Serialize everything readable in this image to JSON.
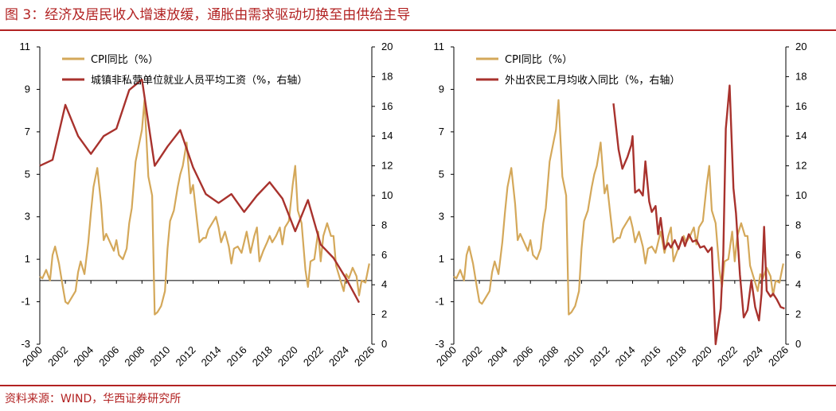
{
  "page": {
    "title": "图 3：经济及居民收入增速放缓，通胀由需求驱动切换至由供给主导",
    "source": "资料来源：WIND，华西证券研究所"
  },
  "colors": {
    "cpi": "#d4a85a",
    "wage": "#a8322d",
    "accent": "#b22222"
  },
  "chart_data": [
    {
      "type": "line",
      "title": "",
      "x_ticks": [
        "2000",
        "2002",
        "2004",
        "2006",
        "2008",
        "2010",
        "2012",
        "2014",
        "2016",
        "2018",
        "2020",
        "2022",
        "2024",
        "2026"
      ],
      "xlim": [
        2000,
        2026
      ],
      "left_axis": {
        "ylim": [
          -3,
          11
        ],
        "ticks": [
          "11",
          "9",
          "7",
          "5",
          "3",
          "1",
          "-1",
          "-3"
        ]
      },
      "right_axis": {
        "ylim": [
          0,
          20
        ],
        "ticks": [
          "20",
          "18",
          "16",
          "14",
          "12",
          "10",
          "8",
          "6",
          "4",
          "2",
          "0"
        ]
      },
      "legend_position": "top-left",
      "series": [
        {
          "name": "CPI同比（%）",
          "axis": "left",
          "x": [
            2000,
            2000.2,
            2000.5,
            2000.8,
            2001,
            2001.2,
            2001.5,
            2001.8,
            2002,
            2002.2,
            2002.5,
            2002.8,
            2003,
            2003.2,
            2003.5,
            2003.8,
            2004,
            2004.2,
            2004.5,
            2004.8,
            2005,
            2005.2,
            2005.5,
            2005.8,
            2006,
            2006.2,
            2006.5,
            2006.8,
            2007,
            2007.2,
            2007.5,
            2007.8,
            2008,
            2008.2,
            2008.5,
            2008.8,
            2009,
            2009.2,
            2009.5,
            2009.8,
            2010,
            2010.2,
            2010.5,
            2010.8,
            2011,
            2011.2,
            2011.5,
            2011.8,
            2012,
            2012.2,
            2012.5,
            2012.8,
            2013,
            2013.2,
            2013.5,
            2013.8,
            2014,
            2014.2,
            2014.5,
            2014.8,
            2015,
            2015.2,
            2015.5,
            2015.8,
            2016,
            2016.2,
            2016.5,
            2016.8,
            2017,
            2017.2,
            2017.5,
            2017.8,
            2018,
            2018.2,
            2018.5,
            2018.8,
            2019,
            2019.2,
            2019.5,
            2019.8,
            2020,
            2020.2,
            2020.5,
            2020.8,
            2021,
            2021.2,
            2021.5,
            2021.8,
            2022,
            2022.2,
            2022.5,
            2022.8,
            2023,
            2023.2,
            2023.5,
            2023.8,
            2024,
            2024.2,
            2024.5,
            2024.8,
            2025,
            2025.2,
            2025.5,
            2025.8
          ],
          "values": [
            0.2,
            0.1,
            0.5,
            0.0,
            1.2,
            1.6,
            0.8,
            -0.3,
            -1.0,
            -1.1,
            -0.8,
            -0.5,
            0.4,
            0.9,
            0.3,
            1.8,
            3.2,
            4.4,
            5.3,
            3.6,
            1.9,
            2.2,
            1.8,
            1.4,
            1.9,
            1.2,
            1.0,
            1.5,
            2.7,
            3.4,
            5.6,
            6.5,
            7.1,
            8.5,
            4.9,
            4.0,
            -1.6,
            -1.5,
            -1.2,
            -0.5,
            1.5,
            2.8,
            3.3,
            4.4,
            5.0,
            5.4,
            6.5,
            4.1,
            4.5,
            3.4,
            1.8,
            2.0,
            2.0,
            2.4,
            2.7,
            3.0,
            2.5,
            1.8,
            2.3,
            1.6,
            0.8,
            1.5,
            1.6,
            1.3,
            1.8,
            2.3,
            1.3,
            2.1,
            2.5,
            0.9,
            1.4,
            1.8,
            2.1,
            1.8,
            2.1,
            2.5,
            1.7,
            2.5,
            2.8,
            4.5,
            5.4,
            3.3,
            2.7,
            0.5,
            -0.3,
            0.9,
            1.0,
            2.3,
            0.9,
            2.1,
            2.7,
            2.1,
            2.1,
            0.7,
            0.1,
            -0.5,
            0.3,
            0.1,
            0.6,
            0.2,
            -0.7,
            0.0,
            -0.1,
            0.8
          ]
        },
        {
          "name": "城镇非私营单位就业人员平均工资（%，右轴）",
          "axis": "right",
          "x": [
            2000,
            2001,
            2002,
            2003,
            2004,
            2005,
            2006,
            2007,
            2008,
            2009,
            2010,
            2011,
            2012,
            2013,
            2014,
            2015,
            2016,
            2017,
            2018,
            2019,
            2020,
            2021,
            2022,
            2023,
            2024,
            2025
          ],
          "values": [
            12.0,
            12.4,
            16.1,
            14.0,
            12.8,
            14.0,
            14.5,
            17.1,
            17.8,
            12.0,
            13.3,
            14.4,
            11.9,
            10.1,
            9.5,
            10.1,
            8.9,
            10.0,
            10.9,
            9.8,
            7.6,
            9.7,
            6.7,
            5.8,
            4.4,
            2.8
          ]
        }
      ]
    },
    {
      "type": "line",
      "title": "",
      "x_ticks": [
        "2000",
        "2002",
        "2004",
        "2006",
        "2008",
        "2010",
        "2012",
        "2014",
        "2016",
        "2018",
        "2020",
        "2022",
        "2024",
        "2026"
      ],
      "xlim": [
        2000,
        2026
      ],
      "left_axis": {
        "ylim": [
          -3,
          11
        ],
        "ticks": [
          "11",
          "9",
          "7",
          "5",
          "3",
          "1",
          "-1",
          "-3"
        ]
      },
      "right_axis": {
        "ylim": [
          0,
          20
        ],
        "ticks": [
          "20",
          "18",
          "16",
          "14",
          "12",
          "10",
          "8",
          "6",
          "4",
          "2",
          "0"
        ]
      },
      "legend_position": "top-left",
      "series": [
        {
          "name": "CPI同比（%）",
          "axis": "left",
          "x": [
            2000,
            2000.2,
            2000.5,
            2000.8,
            2001,
            2001.2,
            2001.5,
            2001.8,
            2002,
            2002.2,
            2002.5,
            2002.8,
            2003,
            2003.2,
            2003.5,
            2003.8,
            2004,
            2004.2,
            2004.5,
            2004.8,
            2005,
            2005.2,
            2005.5,
            2005.8,
            2006,
            2006.2,
            2006.5,
            2006.8,
            2007,
            2007.2,
            2007.5,
            2007.8,
            2008,
            2008.2,
            2008.5,
            2008.8,
            2009,
            2009.2,
            2009.5,
            2009.8,
            2010,
            2010.2,
            2010.5,
            2010.8,
            2011,
            2011.2,
            2011.5,
            2011.8,
            2012,
            2012.2,
            2012.5,
            2012.8,
            2013,
            2013.2,
            2013.5,
            2013.8,
            2014,
            2014.2,
            2014.5,
            2014.8,
            2015,
            2015.2,
            2015.5,
            2015.8,
            2016,
            2016.2,
            2016.5,
            2016.8,
            2017,
            2017.2,
            2017.5,
            2017.8,
            2018,
            2018.2,
            2018.5,
            2018.8,
            2019,
            2019.2,
            2019.5,
            2019.8,
            2020,
            2020.2,
            2020.5,
            2020.8,
            2021,
            2021.2,
            2021.5,
            2021.8,
            2022,
            2022.2,
            2022.5,
            2022.8,
            2023,
            2023.2,
            2023.5,
            2023.8,
            2024,
            2024.2,
            2024.5,
            2024.8,
            2025,
            2025.2,
            2025.5,
            2025.8
          ],
          "values": [
            0.2,
            0.1,
            0.5,
            0.0,
            1.2,
            1.6,
            0.8,
            -0.3,
            -1.0,
            -1.1,
            -0.8,
            -0.5,
            0.4,
            0.9,
            0.3,
            1.8,
            3.2,
            4.4,
            5.3,
            3.6,
            1.9,
            2.2,
            1.8,
            1.4,
            1.9,
            1.2,
            1.0,
            1.5,
            2.7,
            3.4,
            5.6,
            6.5,
            7.1,
            8.5,
            4.9,
            4.0,
            -1.6,
            -1.5,
            -1.2,
            -0.5,
            1.5,
            2.8,
            3.3,
            4.4,
            5.0,
            5.4,
            6.5,
            4.1,
            4.5,
            3.4,
            1.8,
            2.0,
            2.0,
            2.4,
            2.7,
            3.0,
            2.5,
            1.8,
            2.3,
            1.6,
            0.8,
            1.5,
            1.6,
            1.3,
            1.8,
            2.3,
            1.3,
            2.1,
            2.5,
            0.9,
            1.4,
            1.8,
            2.1,
            1.8,
            2.1,
            2.5,
            1.7,
            2.5,
            2.8,
            4.5,
            5.4,
            3.3,
            2.7,
            0.5,
            -0.3,
            0.9,
            1.0,
            2.3,
            0.9,
            2.1,
            2.7,
            2.1,
            2.1,
            0.7,
            0.1,
            -0.5,
            0.3,
            0.1,
            0.6,
            0.2,
            -0.7,
            0.0,
            -0.1,
            0.8
          ]
        },
        {
          "name": "外出农民工月均收入同比（%，右轴）",
          "axis": "right",
          "x": [
            2012.5,
            2012.9,
            2013.2,
            2013.6,
            2013.9,
            2014.0,
            2014.2,
            2014.5,
            2014.8,
            2015.0,
            2015.3,
            2015.5,
            2015.8,
            2016.0,
            2016.2,
            2016.5,
            2016.8,
            2017.0,
            2017.3,
            2017.6,
            2017.9,
            2018.1,
            2018.4,
            2018.7,
            2019.0,
            2019.3,
            2019.6,
            2019.9,
            2020.2,
            2020.5,
            2020.9,
            2021.1,
            2021.3,
            2021.6,
            2021.9,
            2022.1,
            2022.4,
            2022.7,
            2023.0,
            2023.3,
            2023.6,
            2023.9,
            2024.1,
            2024.3,
            2024.5,
            2024.8,
            2025.0,
            2025.3,
            2025.6,
            2025.9
          ],
          "values": [
            16.2,
            13.1,
            11.8,
            12.6,
            13.4,
            14.0,
            10.2,
            10.4,
            10.0,
            12.3,
            9.6,
            8.9,
            9.3,
            7.4,
            8.5,
            6.4,
            6.8,
            6.5,
            7.0,
            6.4,
            7.2,
            6.6,
            7.4,
            6.9,
            7.0,
            6.5,
            6.6,
            6.2,
            6.5,
            0.0,
            2.4,
            6.0,
            14.5,
            17.4,
            10.5,
            8.8,
            4.7,
            1.8,
            2.3,
            4.3,
            2.5,
            1.6,
            3.4,
            7.9,
            3.6,
            3.2,
            3.4,
            3.0,
            2.5,
            2.4
          ]
        }
      ]
    }
  ]
}
